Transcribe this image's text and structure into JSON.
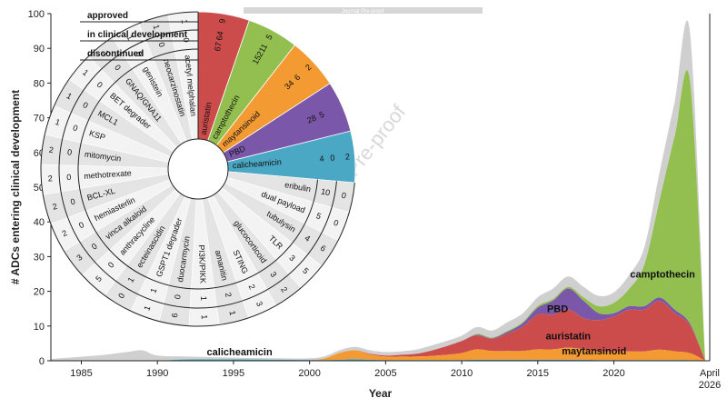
{
  "header_bar_text": "Journal Pre-proof",
  "watermark_text": "Journal Pre-proof",
  "chart_data": [
    {
      "type": "area",
      "xlabel": "Year",
      "ylabel": "# ADCs entering clinical development",
      "ylim": [
        0,
        100
      ],
      "xlim": [
        1983,
        2026.3
      ],
      "y_ticks": [
        0,
        10,
        20,
        30,
        40,
        50,
        60,
        70,
        80,
        90,
        100
      ],
      "x_ticks": [
        {
          "value": 1985,
          "label": "1985"
        },
        {
          "value": 1990,
          "label": "1990"
        },
        {
          "value": 1995,
          "label": "1995"
        },
        {
          "value": 2000,
          "label": "2000"
        },
        {
          "value": 2005,
          "label": "2005"
        },
        {
          "value": 2010,
          "label": "2010"
        },
        {
          "value": 2015,
          "label": "2015"
        },
        {
          "value": 2020,
          "label": "2020"
        }
      ],
      "end_label_top": "April",
      "end_label_bottom": "2026",
      "x": [
        1983,
        1986,
        1988,
        1989,
        1990,
        1992,
        1995,
        1998,
        2000,
        2001,
        2002,
        2003,
        2004,
        2005,
        2006,
        2007,
        2008,
        2009,
        2010,
        2011,
        2012,
        2013,
        2014,
        2015,
        2016,
        2017,
        2018,
        2019,
        2020,
        2021,
        2022,
        2023,
        2024,
        2025,
        2026
      ],
      "series": [
        {
          "name": "calicheamicin",
          "color": "#4aa8c4",
          "values": [
            0,
            0,
            0,
            0,
            0,
            0.4,
            0.4,
            0.3,
            0.2,
            0.2,
            0.3,
            0.5,
            0.3,
            0.2,
            0.2,
            0.2,
            0.2,
            0.2,
            0.2,
            0.3,
            0.3,
            0.3,
            0.3,
            0.3,
            0.3,
            0.3,
            0.3,
            0.2,
            0.2,
            0.2,
            0.2,
            0.2,
            0.2,
            0.2,
            0
          ]
        },
        {
          "name": "maytansinoid",
          "color": "#f39a33",
          "values": [
            0,
            0,
            0,
            0,
            0,
            0,
            0,
            0,
            0,
            0.5,
            2,
            2.5,
            1.5,
            1,
            1,
            1,
            1.2,
            1.5,
            2,
            3,
            2.5,
            2.5,
            2.5,
            3,
            3,
            3.5,
            3,
            2.5,
            2.5,
            2.5,
            2.5,
            3,
            2.5,
            2,
            0
          ]
        },
        {
          "name": "auristatin",
          "color": "#cc4b4b",
          "values": [
            0,
            0,
            0,
            0,
            0,
            0,
            0,
            0,
            0,
            0,
            0,
            0,
            0.2,
            0.3,
            0.5,
            0.8,
            1.5,
            2.5,
            3.5,
            4,
            3.5,
            5,
            7,
            10,
            10,
            11,
            9,
            9,
            10,
            12,
            12,
            14,
            11,
            8,
            0
          ]
        },
        {
          "name": "PBD",
          "color": "#7a57a8",
          "values": [
            0,
            0,
            0,
            0,
            0,
            0,
            0,
            0,
            0,
            0,
            0,
            0,
            0,
            0,
            0,
            0,
            0,
            0,
            0,
            0.2,
            0.2,
            0.5,
            1,
            2,
            4,
            6,
            5,
            2,
            1,
            1,
            1,
            1,
            1,
            0.5,
            0
          ]
        },
        {
          "name": "camptothecin",
          "color": "#92bf50",
          "values": [
            0,
            0,
            0,
            0,
            0,
            0,
            0,
            0,
            0,
            0,
            0,
            0,
            0,
            0,
            0,
            0,
            0,
            0,
            0,
            0.2,
            0.2,
            0.3,
            0.3,
            0.5,
            0.5,
            0.5,
            1,
            2,
            3,
            5,
            12,
            28,
            50,
            70,
            0
          ]
        },
        {
          "name": "",
          "color": "#cfcfcf",
          "values": [
            0.5,
            1.5,
            2.5,
            3,
            1.5,
            0.8,
            0.5,
            0.4,
            0.5,
            0.6,
            0.8,
            1,
            1,
            1,
            1,
            1.2,
            1.5,
            1.5,
            1.5,
            2,
            2,
            2.5,
            2.5,
            2.5,
            3,
            3,
            3,
            3,
            3,
            4,
            5,
            8,
            10,
            14,
            0
          ]
        }
      ],
      "stream_labels": [
        {
          "text": "camptothecin",
          "x": 2023.2,
          "y": 24
        },
        {
          "text": "PBD",
          "x": 2016.3,
          "y": 14
        },
        {
          "text": "auristatin",
          "x": 2017.0,
          "y": 6.2
        },
        {
          "text": "maytansinoid",
          "x": 2018.7,
          "y": 1.8
        },
        {
          "text": "calicheamicin",
          "x": 1995.4,
          "y": 1.6
        }
      ]
    },
    {
      "type": "radial-bar",
      "row_labels": [
        "approved",
        "in clinical development",
        "discontinued"
      ],
      "major_payloads": [
        {
          "name": "auristatin",
          "color": "#cc4b4b",
          "approved": "9",
          "clinical": "64",
          "discontinued": "67"
        },
        {
          "name": "camptothecin",
          "color": "#92bf50",
          "approved": "5",
          "clinical": "211",
          "discontinued": "15"
        },
        {
          "name": "maytansinoid",
          "color": "#f39a33",
          "approved": "2",
          "clinical": "6",
          "discontinued": "34"
        },
        {
          "name": "PBD",
          "color": "#7a57a8",
          "approved": "",
          "clinical": "5",
          "discontinued": "28"
        },
        {
          "name": "calicheamicin",
          "color": "#4aa8c4",
          "approved": "2",
          "clinical": "0",
          "discontinued": "4"
        }
      ],
      "minor_payloads": [
        {
          "name": "eribulin",
          "clinical": "10",
          "discontinued": "0"
        },
        {
          "name": "dual payload",
          "clinical": "5",
          "discontinued": "0"
        },
        {
          "name": "tubulysin",
          "clinical": "4",
          "discontinued": "6"
        },
        {
          "name": "TLR",
          "clinical": "3",
          "discontinued": "5"
        },
        {
          "name": "glucocorticoid",
          "clinical": "3",
          "discontinued": "2"
        },
        {
          "name": "STING",
          "clinical": "2",
          "discontinued": "3"
        },
        {
          "name": "amanitin",
          "clinical": "2",
          "discontinued": "1"
        },
        {
          "name": "PI3K/PIKK",
          "clinical": "1",
          "discontinued": "1"
        },
        {
          "name": "duocarmycin",
          "clinical": "0",
          "discontinued": "6"
        },
        {
          "name": "GSPT1 degrader",
          "clinical": "1",
          "discontinued": "1"
        },
        {
          "name": "ecteinascidin",
          "clinical": "1",
          "discontinued": "0"
        },
        {
          "name": "anthracycline",
          "clinical": "0",
          "discontinued": "5"
        },
        {
          "name": "vinca alkaloid",
          "clinical": "0",
          "discontinued": "3"
        },
        {
          "name": "hemiasterlin",
          "clinical": "0",
          "discontinued": "2"
        },
        {
          "name": "BCL-XL",
          "clinical": "0",
          "discontinued": "2"
        },
        {
          "name": "methotrexate",
          "clinical": "0",
          "discontinued": "2"
        },
        {
          "name": "mitomycin",
          "clinical": "0",
          "discontinued": "2"
        },
        {
          "name": "KSP",
          "clinical": "0",
          "discontinued": "1"
        },
        {
          "name": "MCL1",
          "clinical": "0",
          "discontinued": "1"
        },
        {
          "name": "BET degrader",
          "clinical": "0",
          "discontinued": "1"
        },
        {
          "name": "GNAQ/GNA11",
          "clinical": "0",
          "discontinued": "1"
        },
        {
          "name": "genistein",
          "clinical": "0",
          "discontinued": "1"
        },
        {
          "name": "neocarzinostatin",
          "clinical": "0",
          "discontinued": "1"
        },
        {
          "name": "acetyl melphalan",
          "clinical": "0",
          "discontinued": "1"
        }
      ]
    }
  ]
}
